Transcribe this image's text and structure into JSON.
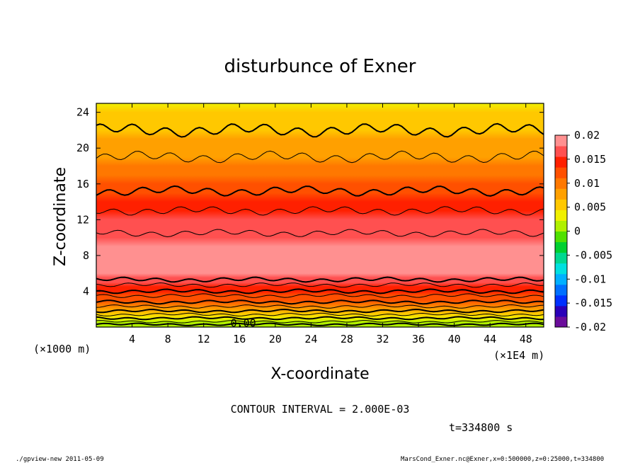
{
  "chart_data": {
    "type": "heatmap",
    "title": "disturbunce of Exner",
    "xlabel": "X-coordinate",
    "ylabel": "Z-coordinate",
    "x_unit": "(×1000 m)",
    "x_multiplier": "(×1E4 m)",
    "xlim": [
      0,
      50
    ],
    "ylim": [
      0,
      25
    ],
    "x_ticks": [
      "4",
      "8",
      "12",
      "16",
      "20",
      "24",
      "28",
      "32",
      "36",
      "40",
      "44",
      "48"
    ],
    "y_ticks": [
      "4",
      "8",
      "12",
      "16",
      "20",
      "24"
    ],
    "x_tick_values": [
      4,
      8,
      12,
      16,
      20,
      24,
      28,
      32,
      36,
      40,
      44,
      48
    ],
    "y_tick_values": [
      4,
      8,
      12,
      16,
      20,
      24
    ],
    "colorbar_ticks": [
      "0.02",
      "0.015",
      "0.01",
      "0.005",
      "0",
      "-0.005",
      "-0.01",
      "-0.015",
      "-0.02"
    ],
    "colorbar_values": [
      0.02,
      0.015,
      0.01,
      0.005,
      0,
      -0.005,
      -0.01,
      -0.015,
      -0.02
    ],
    "colorbar_range": [
      -0.02,
      0.02
    ],
    "colorbar_colors": [
      "#6a0c9a",
      "#2a00b8",
      "#0030ff",
      "#0070ff",
      "#00b0ff",
      "#00e0e0",
      "#00d890",
      "#00d030",
      "#50e000",
      "#b0f000",
      "#f0f000",
      "#ffc800",
      "#ffa000",
      "#ff7800",
      "#ff5000",
      "#ff2000",
      "#ff5050",
      "#ff9090"
    ],
    "contour_interval": 0.002,
    "contour_label": "0.00",
    "profile": {
      "z": [
        0,
        0.5,
        1,
        1.5,
        2,
        2.5,
        3,
        3.5,
        4,
        4.5,
        5,
        5.5,
        6,
        7,
        8,
        9,
        10,
        11,
        12,
        13,
        14,
        15,
        16,
        17,
        18,
        19,
        20,
        21,
        22,
        23,
        24,
        25
      ],
      "value": [
        0.0,
        0.002,
        0.004,
        0.006,
        0.008,
        0.01,
        0.012,
        0.013,
        0.0145,
        0.0155,
        0.0165,
        0.0172,
        0.0178,
        0.0182,
        0.0184,
        0.0182,
        0.0176,
        0.0168,
        0.0158,
        0.0148,
        0.0138,
        0.0128,
        0.0118,
        0.0108,
        0.0098,
        0.0088,
        0.0078,
        0.007,
        0.0062,
        0.0054,
        0.0048,
        0.0042
      ]
    },
    "contour_levels": [
      {
        "value": 0.0,
        "z": 0.3,
        "bold": true
      },
      {
        "value": 0.002,
        "z": 0.6,
        "bold": false
      },
      {
        "value": 0.004,
        "z": 1.0,
        "bold": true
      },
      {
        "value": 0.006,
        "z": 1.4,
        "bold": false
      },
      {
        "value": 0.008,
        "z": 1.8,
        "bold": true
      },
      {
        "value": 0.01,
        "z": 2.3,
        "bold": false
      },
      {
        "value": 0.012,
        "z": 2.8,
        "bold": true
      },
      {
        "value": 0.013,
        "z": 3.5,
        "bold": false
      },
      {
        "value": 0.0145,
        "z": 4.0,
        "bold": true
      },
      {
        "value": 0.0155,
        "z": 4.7,
        "bold": false
      },
      {
        "value": 0.0165,
        "z": 5.3,
        "bold": true
      },
      {
        "value": 0.0165,
        "z": 10.5,
        "bold": false
      },
      {
        "value": 0.0148,
        "z": 13.0,
        "bold": false
      },
      {
        "value": 0.0128,
        "z": 15.2,
        "bold": true
      },
      {
        "value": 0.01,
        "z": 19.0,
        "bold": false
      },
      {
        "value": 0.007,
        "z": 22.0,
        "bold": true
      }
    ]
  },
  "annotations": {
    "contour_interval_text": "CONTOUR INTERVAL = 2.000E-03",
    "time_text": "t=334800 s",
    "footer_left": "./gpview-new 2011-05-09",
    "footer_right": "MarsCond_Exner.nc@Exner,x=0:500000,z=0:25000,t=334800"
  }
}
